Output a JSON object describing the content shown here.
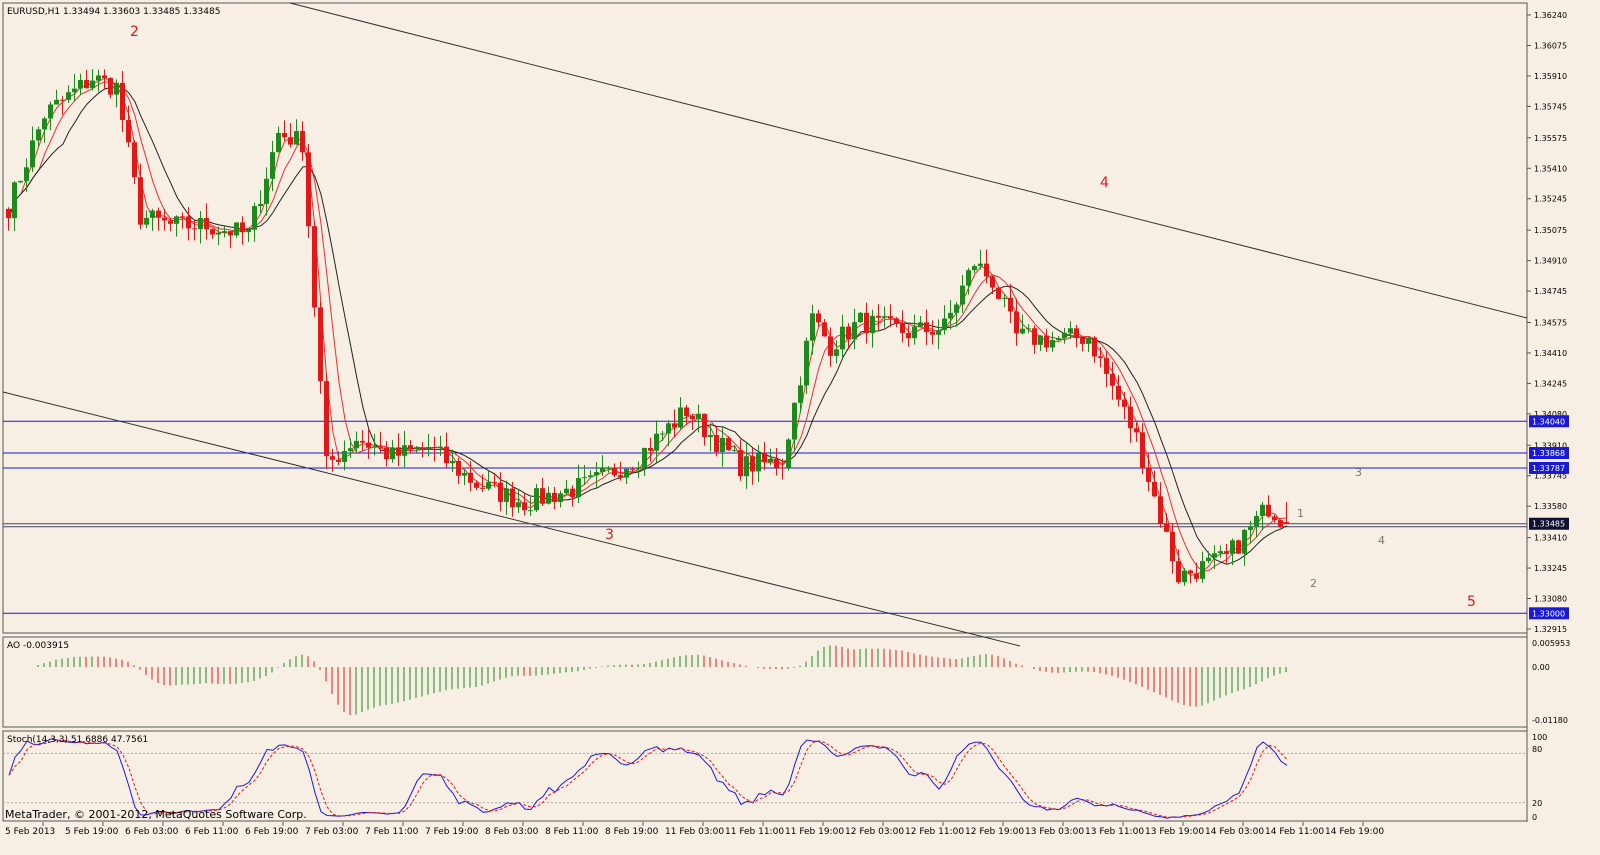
{
  "colors": {
    "background": "#f7efe3",
    "bull": "#1e8a1e",
    "bear": "#e01818",
    "ma_fast": "#e83030",
    "ma_slow": "#222222",
    "hline": "#1a1ad6",
    "wave_label": "#e01818",
    "stoch_main": "#1a1ad6",
    "stoch_signal": "#e01818"
  },
  "header": {
    "title": "EURUSD,H1  1.33494 1.33603 1.33485 1.33485"
  },
  "main_price_axis": {
    "ticks": [
      "1.36240",
      "1.36075",
      "1.35910",
      "1.35745",
      "1.35575",
      "1.35410",
      "1.35245",
      "1.35075",
      "1.34910",
      "1.34745",
      "1.34575",
      "1.34410",
      "1.34245",
      "1.34080",
      "1.33910",
      "1.33745",
      "1.33580",
      "1.33410",
      "1.33245",
      "1.33080",
      "1.32915"
    ],
    "marked_levels": [
      "1.34040",
      "1.33868",
      "1.33787",
      "1.33485",
      "1.33000"
    ]
  },
  "wave_labels": {
    "main": [
      "2",
      "3",
      "4",
      "5"
    ],
    "sub": [
      "1",
      "2",
      "3",
      "4"
    ]
  },
  "ao_panel": {
    "label": "AO -0.003915",
    "ticks": [
      "0.005953",
      "0.00",
      "-0.01180"
    ]
  },
  "stoch_panel": {
    "label": "Stoch(14,3,3) 51.6886 47.7561",
    "ticks": [
      "100",
      "80",
      "20",
      "0"
    ]
  },
  "copyright": "MetaTrader, © 2001-2012, MetaQuotes Software Corp.",
  "time_axis": [
    "5 Feb 2013",
    "5 Feb 19:00",
    "6 Feb 03:00",
    "6 Feb 11:00",
    "6 Feb 19:00",
    "7 Feb 03:00",
    "7 Feb 11:00",
    "7 Feb 19:00",
    "8 Feb 03:00",
    "8 Feb 11:00",
    "8 Feb 19:00",
    "11 Feb 03:00",
    "11 Feb 11:00",
    "11 Feb 19:00",
    "12 Feb 03:00",
    "12 Feb 11:00",
    "12 Feb 19:00",
    "13 Feb 03:00",
    "13 Feb 11:00",
    "13 Feb 19:00",
    "14 Feb 03:00",
    "14 Feb 11:00",
    "14 Feb 19:00"
  ],
  "chart_data": {
    "type": "candlestick",
    "symbol": "EURUSD",
    "timeframe": "H1",
    "last_ohlc": [
      1.33494,
      1.33603,
      1.33485,
      1.33485
    ],
    "ylim": [
      1.32915,
      1.3624
    ],
    "anchors": [
      {
        "bar": 0,
        "close": 1.352
      },
      {
        "bar": 6,
        "close": 1.357
      },
      {
        "bar": 14,
        "close": 1.359
      },
      {
        "bar": 18,
        "close": 1.3585
      },
      {
        "bar": 22,
        "close": 1.3515
      },
      {
        "bar": 27,
        "close": 1.351
      },
      {
        "bar": 33,
        "close": 1.351
      },
      {
        "bar": 40,
        "close": 1.3505
      },
      {
        "bar": 45,
        "close": 1.356
      },
      {
        "bar": 49,
        "close": 1.3555
      },
      {
        "bar": 53,
        "close": 1.338
      },
      {
        "bar": 58,
        "close": 1.3395
      },
      {
        "bar": 64,
        "close": 1.3385
      },
      {
        "bar": 70,
        "close": 1.339
      },
      {
        "bar": 78,
        "close": 1.337
      },
      {
        "bar": 86,
        "close": 1.336
      },
      {
        "bar": 97,
        "close": 1.337
      },
      {
        "bar": 105,
        "close": 1.3385
      },
      {
        "bar": 113,
        "close": 1.341
      },
      {
        "bar": 122,
        "close": 1.338
      },
      {
        "bar": 129,
        "close": 1.3382
      },
      {
        "bar": 134,
        "close": 1.346
      },
      {
        "bar": 137,
        "close": 1.3445
      },
      {
        "bar": 142,
        "close": 1.3458
      },
      {
        "bar": 150,
        "close": 1.3452
      },
      {
        "bar": 156,
        "close": 1.3455
      },
      {
        "bar": 161,
        "close": 1.349
      },
      {
        "bar": 164,
        "close": 1.348
      },
      {
        "bar": 168,
        "close": 1.345
      },
      {
        "bar": 174,
        "close": 1.3448
      },
      {
        "bar": 180,
        "close": 1.345
      },
      {
        "bar": 188,
        "close": 1.3395
      },
      {
        "bar": 195,
        "close": 1.332
      },
      {
        "bar": 203,
        "close": 1.333
      },
      {
        "bar": 210,
        "close": 1.3358
      },
      {
        "bar": 213,
        "close": 1.33485
      }
    ]
  }
}
